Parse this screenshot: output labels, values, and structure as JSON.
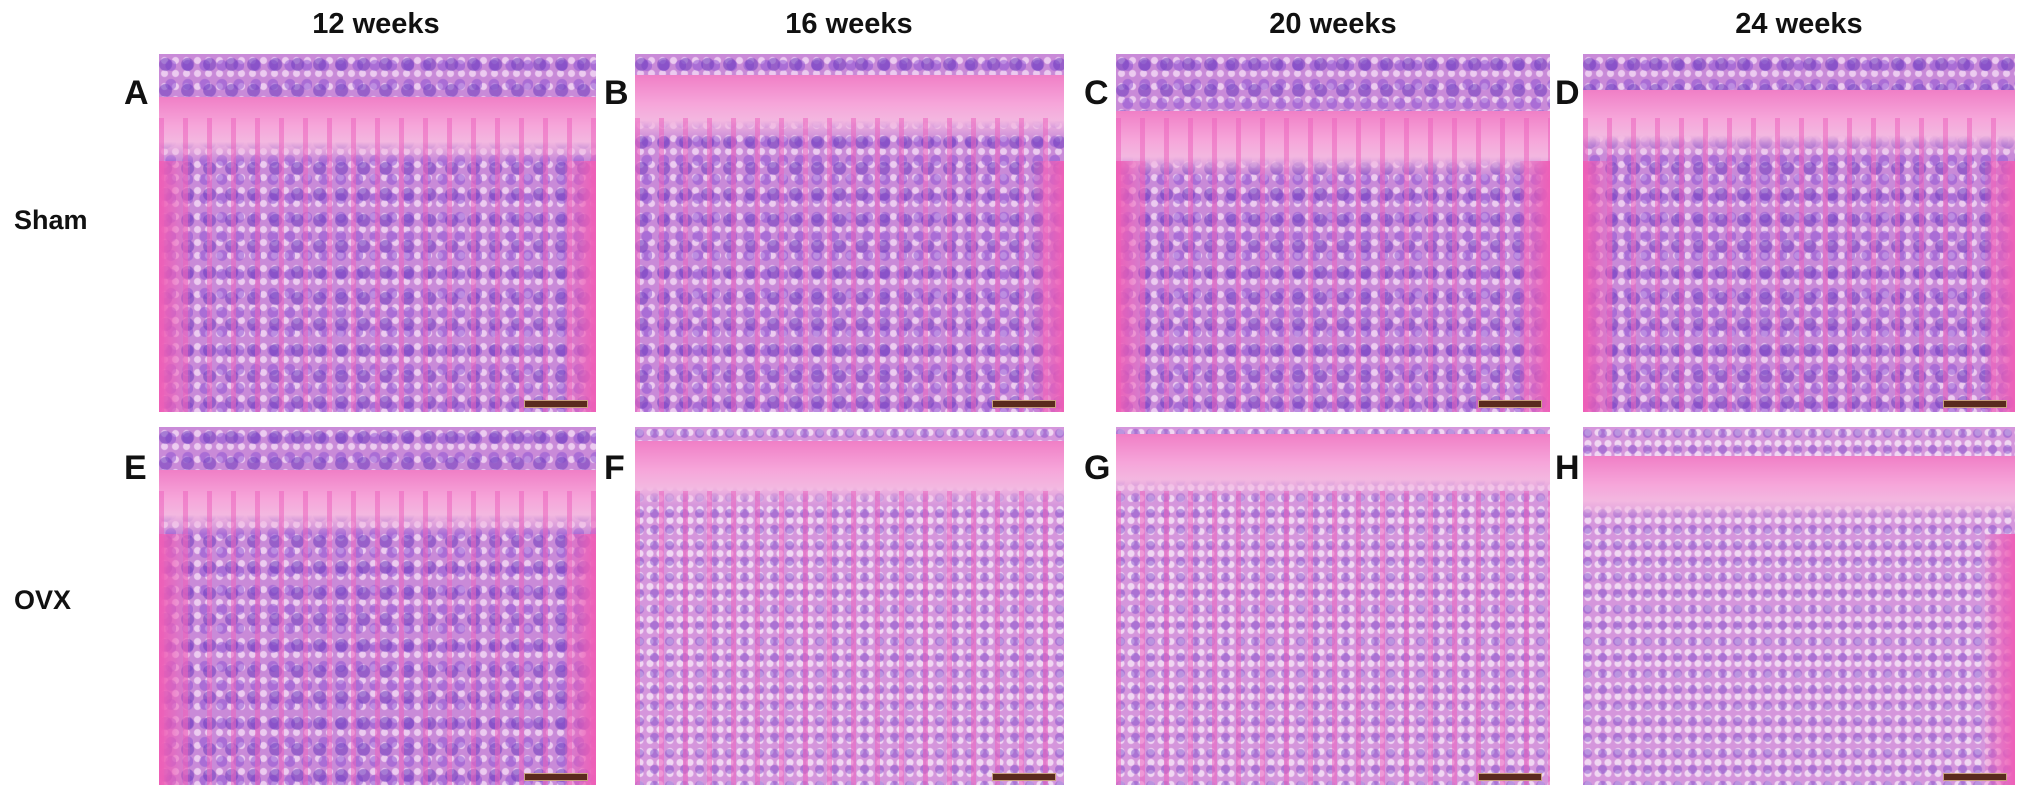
{
  "columns": [
    "12 weeks",
    "16 weeks",
    "20 weeks",
    "24 weeks"
  ],
  "rows": [
    "Sham",
    "OVX"
  ],
  "panels": [
    {
      "letter": "A",
      "group": "Sham",
      "time": "12 weeks"
    },
    {
      "letter": "B",
      "group": "Sham",
      "time": "16 weeks"
    },
    {
      "letter": "C",
      "group": "Sham",
      "time": "20 weeks"
    },
    {
      "letter": "D",
      "group": "Sham",
      "time": "24 weeks"
    },
    {
      "letter": "E",
      "group": "OVX",
      "time": "12 weeks"
    },
    {
      "letter": "F",
      "group": "OVX",
      "time": "16 weeks"
    },
    {
      "letter": "G",
      "group": "OVX",
      "time": "20 weeks"
    },
    {
      "letter": "H",
      "group": "OVX",
      "time": "24 weeks"
    }
  ],
  "colors": {
    "eosin_pink": "#ee5fb7",
    "hematoxylin_purple": "#7a4fc8",
    "scale_bar": "#5a2a1e"
  }
}
